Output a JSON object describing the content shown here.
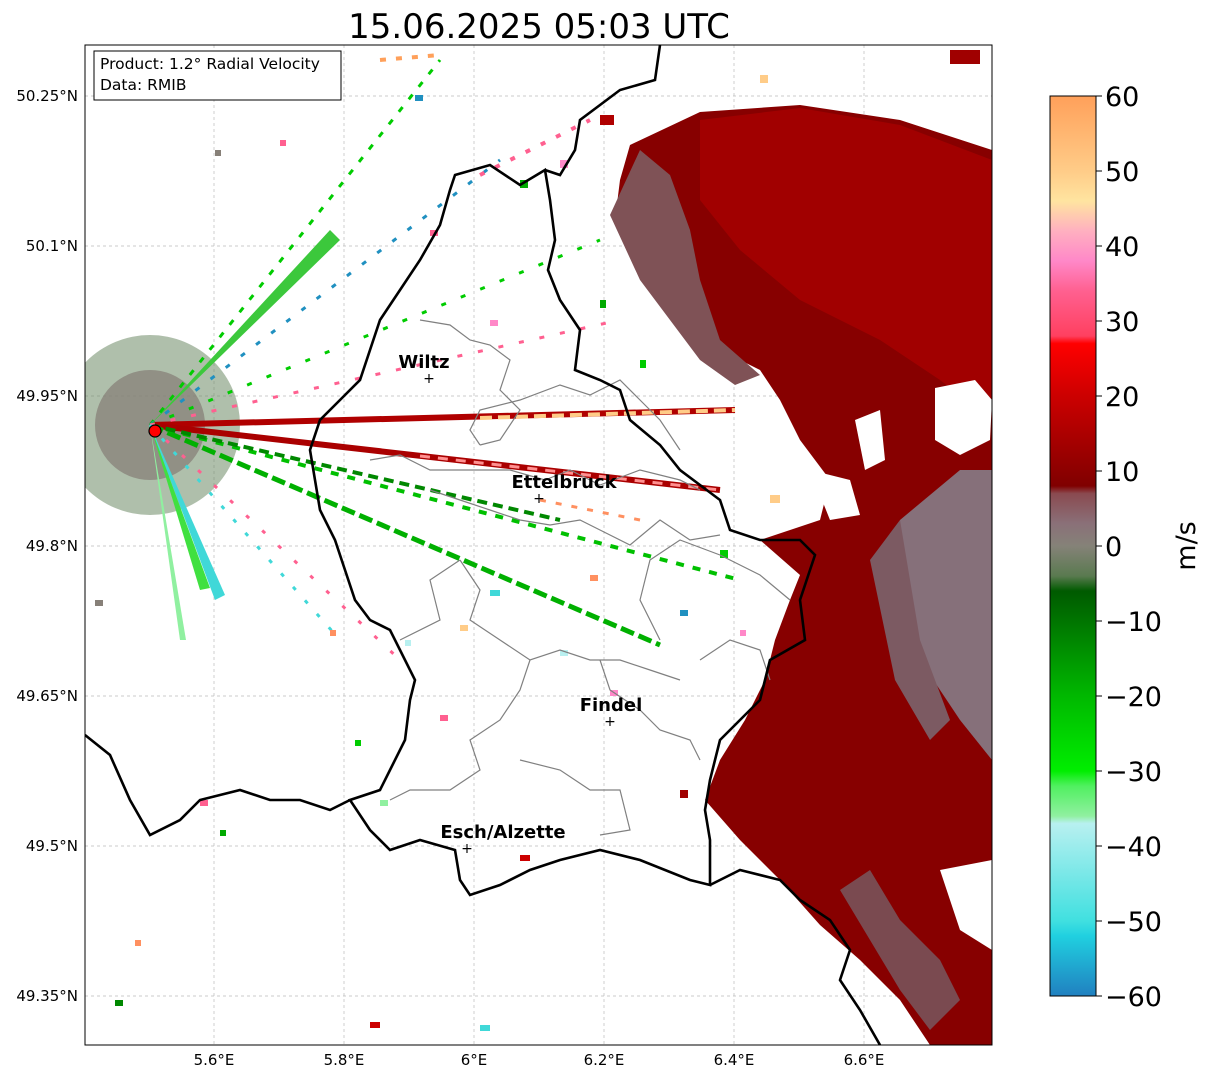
{
  "title": "15.06.2025 05:03 UTC",
  "info_box": {
    "product": "Product: 1.2° Radial Velocity",
    "data": "Data: RMIB"
  },
  "axes": {
    "lon_ticks": [
      "5.6°E",
      "5.8°E",
      "6°E",
      "6.2°E",
      "6.4°E",
      "6.6°E"
    ],
    "lat_ticks": [
      "50.25°N",
      "50.1°N",
      "49.95°N",
      "49.8°N",
      "49.65°N",
      "49.5°N",
      "49.35°N"
    ]
  },
  "cities": [
    {
      "name": "Wiltz",
      "lon": 5.93,
      "lat": 49.97
    },
    {
      "name": "Ettelbruck",
      "lon": 6.1,
      "lat": 49.85
    },
    {
      "name": "Findel",
      "lon": 6.21,
      "lat": 49.63
    },
    {
      "name": "Esch/Alzette",
      "lon": 5.99,
      "lat": 49.5
    }
  ],
  "radar_site": {
    "lon": 5.51,
    "lat": 49.915
  },
  "colorbar": {
    "label": "m/s",
    "min": -60,
    "max": 60,
    "ticks": [
      "60",
      "50",
      "40",
      "30",
      "20",
      "10",
      "0",
      "−10",
      "−20",
      "−30",
      "−40",
      "−50",
      "−60"
    ],
    "stops": [
      {
        "v": 60,
        "color": "#ffa05a"
      },
      {
        "v": 50,
        "color": "#ffcc88"
      },
      {
        "v": 46,
        "color": "#ffe4a0"
      },
      {
        "v": 42,
        "color": "#ffb0c0"
      },
      {
        "v": 38,
        "color": "#ff88c8"
      },
      {
        "v": 34,
        "color": "#ff6090"
      },
      {
        "v": 28,
        "color": "#ff4060"
      },
      {
        "v": 27,
        "color": "#ff0000"
      },
      {
        "v": 20,
        "color": "#cc0000"
      },
      {
        "v": 8,
        "color": "#800000"
      },
      {
        "v": 7,
        "color": "#8a4a50"
      },
      {
        "v": 3,
        "color": "#8a7078"
      },
      {
        "v": 0,
        "color": "#858278"
      },
      {
        "v": -4,
        "color": "#5a7a50"
      },
      {
        "v": -6,
        "color": "#005a00"
      },
      {
        "v": -20,
        "color": "#00b800"
      },
      {
        "v": -30,
        "color": "#00ee00"
      },
      {
        "v": -32,
        "color": "#50f060"
      },
      {
        "v": -36,
        "color": "#90f0a0"
      },
      {
        "v": -37,
        "color": "#b8f0f0"
      },
      {
        "v": -50,
        "color": "#40e0e0"
      },
      {
        "v": -52,
        "color": "#20d0e0"
      },
      {
        "v": -60,
        "color": "#2080c0"
      }
    ]
  },
  "colors": {
    "inbound_strong": "#800000",
    "inbound": "#a00000",
    "outbound": "#00aa00",
    "zero": "#858278"
  }
}
